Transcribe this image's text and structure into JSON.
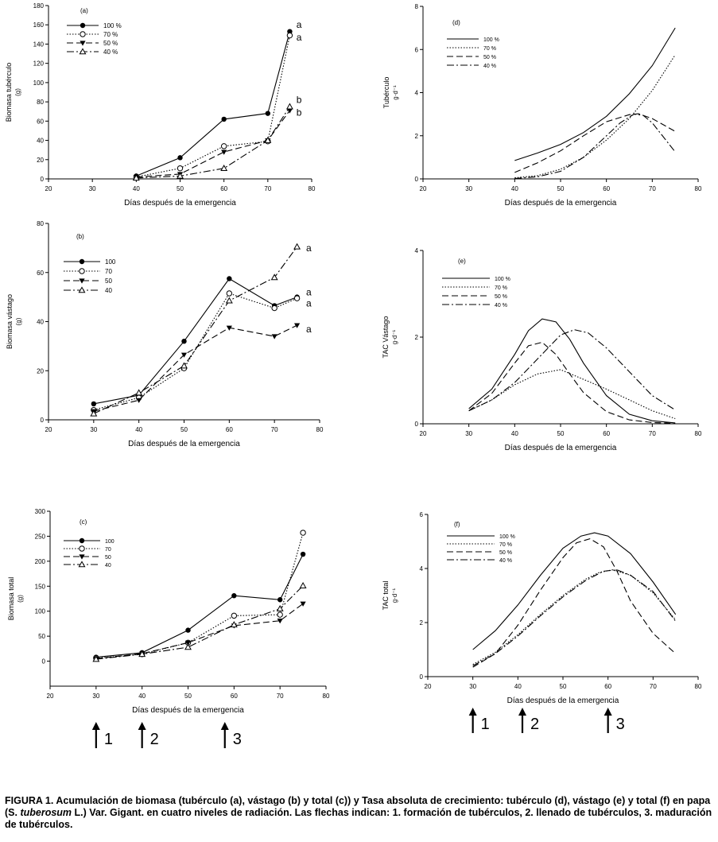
{
  "figure": {
    "caption": {
      "label": "FIGURA 1.",
      "text_part1": "Acumulación de biomasa (tubérculo (a), vástago (b) y total (c)) y Tasa absoluta de crecimiento: tubérculo (d), vástago (e) y total (f) en papa (S. ",
      "italic": "tuberosum",
      "text_part2": " L.) Var. Gigant. en cuatro niveles de radiación. Las flechas indican: 1. formación de tubérculos, 2. llenado de tubérculos, 3. maduración de tubérculos."
    },
    "arrows_left": [
      {
        "label": "1",
        "x": 30
      },
      {
        "label": "2",
        "x": 40
      },
      {
        "label": "3",
        "x": 58
      }
    ],
    "arrows_right": [
      {
        "label": "1",
        "x": 30
      },
      {
        "label": "2",
        "x": 41
      },
      {
        "label": "3",
        "x": 60
      }
    ]
  },
  "chart_data": [
    {
      "id": "a",
      "type": "line",
      "panel_label": "(a)",
      "xlabel": "Días después de la emergencia",
      "ylabel": "Biomasa tubérculo",
      "ylabel_unit": "(g)",
      "xlim": [
        20,
        80
      ],
      "ylim": [
        0,
        180
      ],
      "xticks": [
        20,
        30,
        40,
        50,
        60,
        70,
        80
      ],
      "yticks": [
        0,
        20,
        40,
        60,
        80,
        100,
        120,
        140,
        160,
        180
      ],
      "legend": [
        "100 %",
        "70 %",
        "50 %",
        "40 %"
      ],
      "series": [
        {
          "name": "100 %",
          "x": [
            40,
            50,
            60,
            70,
            75
          ],
          "y": [
            3,
            22,
            62,
            68,
            153
          ]
        },
        {
          "name": "70 %",
          "x": [
            40,
            50,
            60,
            70,
            75
          ],
          "y": [
            2,
            11,
            34,
            39,
            149
          ]
        },
        {
          "name": "50 %",
          "x": [
            40,
            50,
            60,
            70,
            75
          ],
          "y": [
            2,
            5,
            28,
            40,
            71
          ]
        },
        {
          "name": "40 %",
          "x": [
            40,
            50,
            60,
            70,
            75
          ],
          "y": [
            1,
            3,
            11,
            40,
            75
          ]
        }
      ],
      "annotations": [
        {
          "text": "a",
          "x": 76.5,
          "y": 160
        },
        {
          "text": "a",
          "x": 76.5,
          "y": 147
        },
        {
          "text": "b",
          "x": 76.5,
          "y": 82
        },
        {
          "text": "b",
          "x": 76.5,
          "y": 69
        }
      ]
    },
    {
      "id": "b",
      "type": "line",
      "panel_label": "(b)",
      "xlabel": "Días después de la emergencia",
      "ylabel": "Biomasa vástago",
      "ylabel_unit": "(g)",
      "xlim": [
        20,
        80
      ],
      "ylim": [
        0,
        80
      ],
      "xticks": [
        20,
        30,
        40,
        50,
        60,
        70,
        80
      ],
      "yticks": [
        0,
        20,
        40,
        60,
        80
      ],
      "legend": [
        "100",
        "70",
        "50",
        "40"
      ],
      "series": [
        {
          "name": "100",
          "x": [
            30,
            40,
            50,
            60,
            70,
            75
          ],
          "y": [
            6.5,
            10,
            32,
            57.5,
            46.5,
            50
          ]
        },
        {
          "name": "70",
          "x": [
            30,
            40,
            50,
            60,
            70,
            75
          ],
          "y": [
            4,
            9,
            21,
            51.5,
            45.5,
            49.5
          ]
        },
        {
          "name": "50",
          "x": [
            30,
            40,
            50,
            60,
            70,
            75
          ],
          "y": [
            3.5,
            8,
            26.5,
            37.5,
            34,
            38.5
          ]
        },
        {
          "name": "40",
          "x": [
            30,
            40,
            50,
            60,
            70,
            75
          ],
          "y": [
            2.5,
            11,
            22,
            48.5,
            58,
            70.5
          ]
        }
      ],
      "annotations": [
        {
          "text": "a",
          "x": 77,
          "y": 70
        },
        {
          "text": "a",
          "x": 77,
          "y": 52
        },
        {
          "text": "a",
          "x": 77,
          "y": 47.5
        },
        {
          "text": "a",
          "x": 77,
          "y": 37
        }
      ]
    },
    {
      "id": "c",
      "type": "line",
      "panel_label": "(c)",
      "xlabel": "Días después de la emergencia",
      "ylabel": "Biomasa total",
      "ylabel_unit": "(g)",
      "xlim": [
        20,
        80
      ],
      "ylim": [
        -50,
        300
      ],
      "xticks": [
        20,
        30,
        40,
        50,
        60,
        70,
        80
      ],
      "yticks": [
        0,
        50,
        100,
        150,
        200,
        250,
        300
      ],
      "legend": [
        "100",
        "70",
        "50",
        "40"
      ],
      "series": [
        {
          "name": "100",
          "x": [
            30,
            40,
            50,
            60,
            70,
            75
          ],
          "y": [
            8,
            17,
            62,
            131,
            123,
            214
          ]
        },
        {
          "name": "70",
          "x": [
            30,
            40,
            50,
            60,
            70,
            75
          ],
          "y": [
            6,
            14,
            37,
            91,
            93,
            257
          ]
        },
        {
          "name": "50",
          "x": [
            30,
            40,
            50,
            60,
            70,
            75
          ],
          "y": [
            5,
            15,
            37,
            71,
            81,
            115
          ]
        },
        {
          "name": "40",
          "x": [
            30,
            40,
            50,
            60,
            70,
            75
          ],
          "y": [
            4,
            14,
            28,
            73,
            105,
            151
          ]
        }
      ]
    },
    {
      "id": "d",
      "type": "line",
      "panel_label": "(d)",
      "xlabel": "Días después de la emergencia",
      "ylabel": "Tubérculo",
      "ylabel_unit": "g·d⁻¹",
      "xlim": [
        20,
        80
      ],
      "ylim": [
        0,
        8
      ],
      "xticks": [
        20,
        30,
        40,
        50,
        60,
        70,
        80
      ],
      "yticks": [
        0,
        2,
        4,
        6,
        8
      ],
      "legend": [
        "100 %",
        "70 %",
        "50 %",
        "40 %"
      ],
      "series": [
        {
          "name": "100 %",
          "x": [
            40,
            45,
            50,
            55,
            60,
            65,
            70,
            75
          ],
          "y": [
            0.85,
            1.2,
            1.6,
            2.15,
            2.9,
            3.95,
            5.25,
            7.0
          ]
        },
        {
          "name": "70 %",
          "x": [
            40,
            45,
            50,
            55,
            60,
            65,
            70,
            75
          ],
          "y": [
            0.05,
            0.15,
            0.45,
            1.0,
            1.8,
            2.8,
            4.1,
            5.75
          ]
        },
        {
          "name": "50 %",
          "x": [
            40,
            45,
            50,
            55,
            60,
            65,
            67,
            70,
            75
          ],
          "y": [
            0.3,
            0.75,
            1.3,
            2.0,
            2.65,
            2.98,
            3.02,
            2.8,
            2.2
          ]
        },
        {
          "name": "40 %",
          "x": [
            40,
            45,
            50,
            55,
            60,
            63,
            66,
            68,
            70,
            75
          ],
          "y": [
            0.02,
            0.1,
            0.35,
            1.0,
            2.0,
            2.6,
            3.0,
            2.95,
            2.6,
            1.25
          ]
        }
      ]
    },
    {
      "id": "e",
      "type": "line",
      "panel_label": "(e)",
      "xlabel": "Días después de la emergencia",
      "ylabel": "TAC Vástago",
      "ylabel_unit": "g·d⁻¹",
      "xlim": [
        20,
        80
      ],
      "ylim": [
        0,
        4
      ],
      "xticks": [
        20,
        30,
        40,
        50,
        60,
        70,
        80
      ],
      "yticks": [
        0,
        2,
        4
      ],
      "legend": [
        "100 %",
        "70 %",
        "50 %",
        "40 %"
      ],
      "series": [
        {
          "name": "100 %",
          "x": [
            30,
            35,
            40,
            43,
            46,
            49,
            52,
            55,
            60,
            65,
            70,
            75
          ],
          "y": [
            0.35,
            0.8,
            1.6,
            2.15,
            2.42,
            2.35,
            1.95,
            1.4,
            0.65,
            0.22,
            0.07,
            0.02
          ]
        },
        {
          "name": "70 %",
          "x": [
            30,
            35,
            40,
            45,
            50,
            60,
            65,
            70,
            75
          ],
          "y": [
            0.3,
            0.55,
            0.9,
            1.15,
            1.25,
            0.8,
            0.55,
            0.3,
            0.12
          ]
        },
        {
          "name": "50 %",
          "x": [
            30,
            35,
            40,
            43,
            46,
            49,
            52,
            55,
            60,
            65,
            70,
            75
          ],
          "y": [
            0.3,
            0.7,
            1.4,
            1.8,
            1.88,
            1.6,
            1.15,
            0.72,
            0.28,
            0.09,
            0.03,
            0.01
          ]
        },
        {
          "name": "40 %",
          "x": [
            30,
            35,
            40,
            45,
            50,
            53,
            56,
            60,
            65,
            70,
            75
          ],
          "y": [
            0.3,
            0.55,
            0.95,
            1.5,
            2.05,
            2.17,
            2.1,
            1.75,
            1.2,
            0.65,
            0.32
          ]
        }
      ]
    },
    {
      "id": "f",
      "type": "line",
      "panel_label": "(f)",
      "xlabel": "Días después de la emergencia",
      "ylabel": "TAC total",
      "ylabel_unit": "g·d⁻¹",
      "xlim": [
        20,
        80
      ],
      "ylim": [
        0,
        6
      ],
      "xticks": [
        20,
        30,
        40,
        50,
        60,
        70,
        80
      ],
      "yticks": [
        0,
        2,
        4,
        6
      ],
      "legend": [
        "100 %",
        "70 %",
        "50 %",
        "40 %"
      ],
      "series": [
        {
          "name": "100 %",
          "x": [
            30,
            35,
            40,
            45,
            50,
            54,
            57,
            60,
            65,
            70,
            75
          ],
          "y": [
            1.0,
            1.7,
            2.65,
            3.75,
            4.75,
            5.2,
            5.32,
            5.2,
            4.55,
            3.5,
            2.3
          ]
        },
        {
          "name": "70 %",
          "x": [
            30,
            35,
            40,
            45,
            50,
            55,
            58,
            61,
            65,
            70,
            75
          ],
          "y": [
            0.45,
            0.9,
            1.55,
            2.3,
            3.0,
            3.6,
            3.85,
            3.95,
            3.75,
            3.1,
            2.1
          ]
        },
        {
          "name": "50 %",
          "x": [
            30,
            35,
            40,
            45,
            50,
            53,
            56,
            59,
            62,
            65,
            70,
            75
          ],
          "y": [
            0.35,
            0.85,
            1.9,
            3.2,
            4.4,
            4.95,
            5.1,
            4.8,
            3.9,
            2.8,
            1.6,
            0.85
          ]
        },
        {
          "name": "40 %",
          "x": [
            30,
            35,
            40,
            45,
            50,
            55,
            59,
            62,
            65,
            70,
            75
          ],
          "y": [
            0.4,
            0.85,
            1.5,
            2.25,
            2.95,
            3.55,
            3.9,
            3.95,
            3.75,
            3.15,
            2.05
          ]
        }
      ]
    }
  ]
}
